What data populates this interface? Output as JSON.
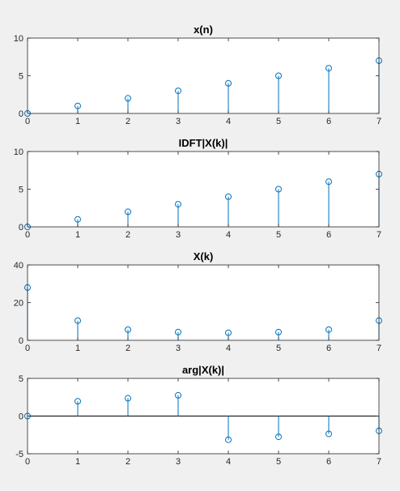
{
  "figure": {
    "background": "#f0f0f0",
    "axes_background": "#ffffff",
    "axes_color": "#262626",
    "stem_color": "#0072bd"
  },
  "chart_data": [
    {
      "type": "stem",
      "title": "x(n)",
      "xlabel": "",
      "ylabel": "",
      "x": [
        0,
        1,
        2,
        3,
        4,
        5,
        6,
        7
      ],
      "series": [
        {
          "values": [
            0,
            1,
            2,
            3,
            4,
            5,
            6,
            7
          ]
        }
      ],
      "xlim": [
        0,
        7
      ],
      "ylim": [
        0,
        10
      ],
      "xticks": [
        0,
        1,
        2,
        3,
        4,
        5,
        6,
        7
      ],
      "yticks": [
        0,
        5,
        10
      ],
      "grid": false,
      "legend": "none"
    },
    {
      "type": "stem",
      "title": "IDFT|X(k)|",
      "xlabel": "",
      "ylabel": "",
      "x": [
        0,
        1,
        2,
        3,
        4,
        5,
        6,
        7
      ],
      "series": [
        {
          "values": [
            0,
            1,
            2,
            3,
            4,
            5,
            6,
            7
          ]
        }
      ],
      "xlim": [
        0,
        7
      ],
      "ylim": [
        0,
        10
      ],
      "xticks": [
        0,
        1,
        2,
        3,
        4,
        5,
        6,
        7
      ],
      "yticks": [
        0,
        5,
        10
      ],
      "grid": false,
      "legend": "none"
    },
    {
      "type": "stem",
      "title": "X(k)",
      "xlabel": "",
      "ylabel": "",
      "x": [
        0,
        1,
        2,
        3,
        4,
        5,
        6,
        7
      ],
      "series": [
        {
          "values": [
            28,
            10.45,
            5.66,
            4.33,
            4,
            4.33,
            5.66,
            10.45
          ]
        }
      ],
      "xlim": [
        0,
        7
      ],
      "ylim": [
        0,
        40
      ],
      "xticks": [
        0,
        1,
        2,
        3,
        4,
        5,
        6,
        7
      ],
      "yticks": [
        0,
        20,
        40
      ],
      "grid": false,
      "legend": "none"
    },
    {
      "type": "stem",
      "title": "arg|X(k)|",
      "xlabel": "",
      "ylabel": "",
      "x": [
        0,
        1,
        2,
        3,
        4,
        5,
        6,
        7
      ],
      "series": [
        {
          "values": [
            0,
            1.96,
            2.36,
            2.75,
            -3.14,
            -2.75,
            -2.36,
            -1.96
          ]
        }
      ],
      "xlim": [
        0,
        7
      ],
      "ylim": [
        -5,
        5
      ],
      "xticks": [
        0,
        1,
        2,
        3,
        4,
        5,
        6,
        7
      ],
      "yticks": [
        -5,
        0,
        5
      ],
      "grid": false,
      "legend": "none"
    }
  ]
}
